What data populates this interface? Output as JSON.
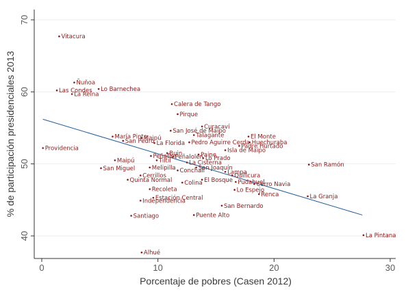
{
  "chart_data": {
    "type": "scatter",
    "xlabel": "Porcentaje de pobres (Casen 2012)",
    "ylabel": "% de participación presidenciales 2013",
    "xlim": [
      0,
      30
    ],
    "ylim": [
      38,
      70
    ],
    "xticks": [
      0,
      10,
      20,
      30
    ],
    "yticks": [
      40,
      50,
      60,
      70
    ],
    "grid": "horizontal",
    "colors": {
      "points": "#8b1a1a",
      "fit_line": "#1f5b99",
      "grid": "#e8eef3",
      "axis": "#333333"
    },
    "fit_line": {
      "x": [
        0.1,
        27.6
      ],
      "y": [
        56.2,
        42.9
      ]
    },
    "points": [
      {
        "label": "Vitacura",
        "x": 1.5,
        "y": 67.7
      },
      {
        "label": "Ñuñoa",
        "x": 2.8,
        "y": 61.3
      },
      {
        "label": "Las Condes",
        "x": 1.3,
        "y": 60.2
      },
      {
        "label": "La Reina",
        "x": 2.6,
        "y": 59.7
      },
      {
        "label": "Lo Barnechea",
        "x": 4.9,
        "y": 60.4
      },
      {
        "label": "Providencia",
        "x": 0.1,
        "y": 52.2
      },
      {
        "label": "Calera de Tango",
        "x": 11.2,
        "y": 58.3
      },
      {
        "label": "Pirque",
        "x": 11.7,
        "y": 56.9
      },
      {
        "label": "Curacaví",
        "x": 13.8,
        "y": 55.2
      },
      {
        "label": "San José de Maipo",
        "x": 11.1,
        "y": 54.6
      },
      {
        "label": "Talagante",
        "x": 13.1,
        "y": 54.0
      },
      {
        "label": "El Monte",
        "x": 17.8,
        "y": 53.8
      },
      {
        "label": "María Pinto",
        "x": 6.1,
        "y": 53.8
      },
      {
        "label": "San Pedro",
        "x": 7.0,
        "y": 53.2
      },
      {
        "label": "Maipú",
        "x": 8.6,
        "y": 53.6
      },
      {
        "label": "La Florida",
        "x": 9.7,
        "y": 52.9
      },
      {
        "label": "Pedro Aguirre Cerda",
        "x": 12.7,
        "y": 53.0
      },
      {
        "label": "Huechuraba",
        "x": 17.9,
        "y": 53.0
      },
      {
        "label": "Padre Hurtado",
        "x": 17.0,
        "y": 52.5
      },
      {
        "label": "Isla de Maipo",
        "x": 15.8,
        "y": 51.9
      },
      {
        "label": "Buin",
        "x": 10.8,
        "y": 51.5
      },
      {
        "label": "Peñaflor",
        "x": 9.4,
        "y": 51.1
      },
      {
        "label": "Peñalolén",
        "x": 11.3,
        "y": 51.0
      },
      {
        "label": "Paine",
        "x": 13.5,
        "y": 51.3
      },
      {
        "label": "Lo Prado",
        "x": 13.9,
        "y": 50.8
      },
      {
        "label": "Tiltil",
        "x": 9.9,
        "y": 50.5
      },
      {
        "label": "Maipú",
        "x": 6.3,
        "y": 50.5
      },
      {
        "label": "La Cisterna",
        "x": 12.5,
        "y": 50.2
      },
      {
        "label": "San Miguel",
        "x": 5.1,
        "y": 49.4
      },
      {
        "label": "Melipilla",
        "x": 9.3,
        "y": 49.5
      },
      {
        "label": "San Joaquín",
        "x": 13.3,
        "y": 49.5
      },
      {
        "label": "Conchalí",
        "x": 11.7,
        "y": 49.1
      },
      {
        "label": "Lampa",
        "x": 15.8,
        "y": 48.9
      },
      {
        "label": "Quilicura",
        "x": 16.4,
        "y": 48.4
      },
      {
        "label": "San Ramón",
        "x": 23.0,
        "y": 49.9
      },
      {
        "label": "Cerrillos",
        "x": 8.5,
        "y": 48.4
      },
      {
        "label": "Quinta Normal",
        "x": 7.4,
        "y": 47.8
      },
      {
        "label": "El Bosque",
        "x": 13.8,
        "y": 47.8
      },
      {
        "label": "Colina",
        "x": 12.1,
        "y": 47.4
      },
      {
        "label": "Pudahuel",
        "x": 16.7,
        "y": 47.5
      },
      {
        "label": "Cerro Navia",
        "x": 18.3,
        "y": 47.2
      },
      {
        "label": "Recoleta",
        "x": 9.3,
        "y": 46.5
      },
      {
        "label": "Lo Espejo",
        "x": 16.6,
        "y": 46.4
      },
      {
        "label": "Renca",
        "x": 18.7,
        "y": 45.8
      },
      {
        "label": "La Granja",
        "x": 22.9,
        "y": 45.5
      },
      {
        "label": "Estación Central",
        "x": 9.6,
        "y": 45.3
      },
      {
        "label": "Independencia",
        "x": 8.5,
        "y": 44.9
      },
      {
        "label": "San Bernardo",
        "x": 15.5,
        "y": 44.2
      },
      {
        "label": "Santiago",
        "x": 7.7,
        "y": 42.8
      },
      {
        "label": "Puente Alto",
        "x": 13.1,
        "y": 42.9
      },
      {
        "label": "La Pintana",
        "x": 27.7,
        "y": 40.1
      },
      {
        "label": "Alhué",
        "x": 8.6,
        "y": 37.7
      }
    ]
  }
}
